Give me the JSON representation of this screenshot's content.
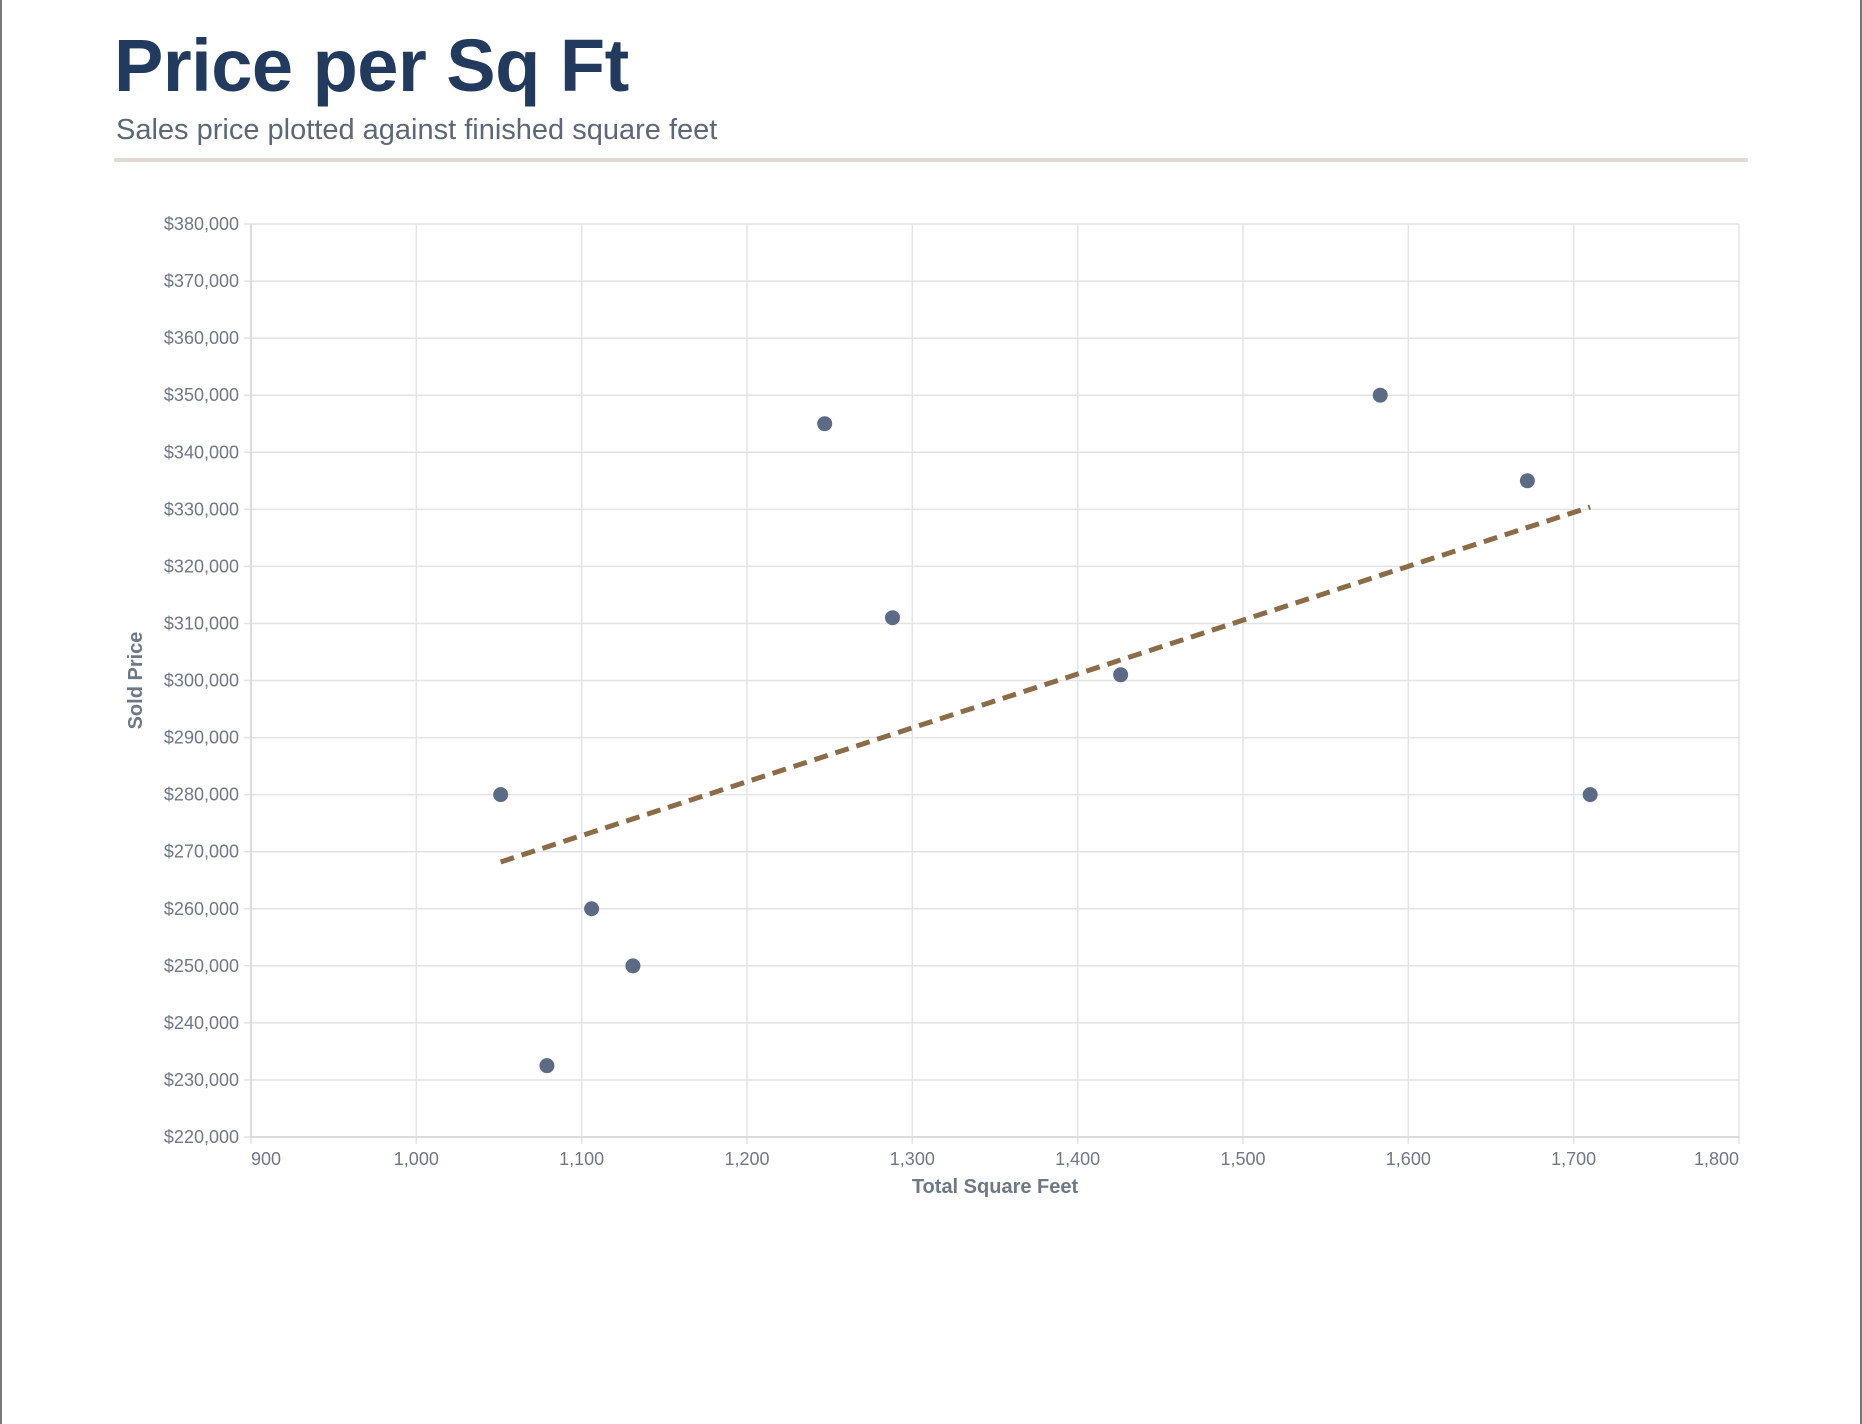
{
  "header": {
    "title": "Price per Sq Ft",
    "subtitle": "Sales price plotted against finished square feet"
  },
  "colors": {
    "title": "#223a5e",
    "subtitle": "#5c6778",
    "rule": "#e2dbd3",
    "point": "#5c6b85",
    "trend": "#8b6c47",
    "grid": "#e3e3e3",
    "axis_text": "#6f7787"
  },
  "chart_data": {
    "type": "scatter",
    "xlabel": "Total Square Feet",
    "ylabel": "Sold Price",
    "xlim": [
      900,
      1800
    ],
    "ylim": [
      220000,
      380000
    ],
    "x_ticks": [
      900,
      1000,
      1100,
      1200,
      1300,
      1400,
      1500,
      1600,
      1700,
      1800
    ],
    "x_tick_labels": [
      "900",
      "1,000",
      "1,100",
      "1,200",
      "1,300",
      "1,400",
      "1,500",
      "1,600",
      "1,700",
      "1,800"
    ],
    "y_ticks": [
      220000,
      230000,
      240000,
      250000,
      260000,
      270000,
      280000,
      290000,
      300000,
      310000,
      320000,
      330000,
      340000,
      350000,
      360000,
      370000,
      380000
    ],
    "y_tick_labels": [
      "$220,000",
      "$230,000",
      "$240,000",
      "$250,000",
      "$260,000",
      "$270,000",
      "$280,000",
      "$290,000",
      "$300,000",
      "$310,000",
      "$320,000",
      "$330,000",
      "$340,000",
      "$350,000",
      "$360,000",
      "$370,000",
      "$380,000"
    ],
    "grid": true,
    "points": [
      {
        "x": 1051,
        "y": 280000
      },
      {
        "x": 1079,
        "y": 232500
      },
      {
        "x": 1106,
        "y": 260000
      },
      {
        "x": 1131,
        "y": 250000
      },
      {
        "x": 1247,
        "y": 345000
      },
      {
        "x": 1288,
        "y": 311000
      },
      {
        "x": 1426,
        "y": 301000
      },
      {
        "x": 1583,
        "y": 350000
      },
      {
        "x": 1672,
        "y": 335000
      },
      {
        "x": 1710,
        "y": 280000
      }
    ],
    "trendline": {
      "style": "dashed",
      "start": {
        "x": 1051,
        "y": 268200
      },
      "end": {
        "x": 1710,
        "y": 330400
      }
    }
  }
}
